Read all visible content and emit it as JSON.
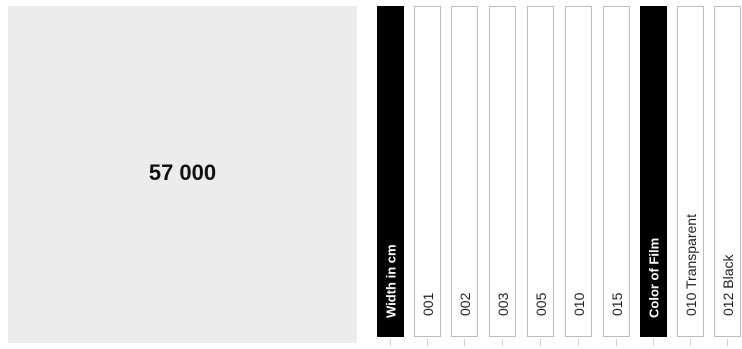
{
  "product": {
    "number": "57 000"
  },
  "width_group": {
    "header": "Width in cm",
    "options": [
      "001",
      "002",
      "003",
      "005",
      "010",
      "015"
    ]
  },
  "color_group": {
    "header": "Color of Film",
    "options": [
      "010 Transparent",
      "012 Black"
    ]
  },
  "colors": {
    "panel": "#ececec",
    "header_bg": "#000000",
    "option_border": "#bdbdbd"
  }
}
